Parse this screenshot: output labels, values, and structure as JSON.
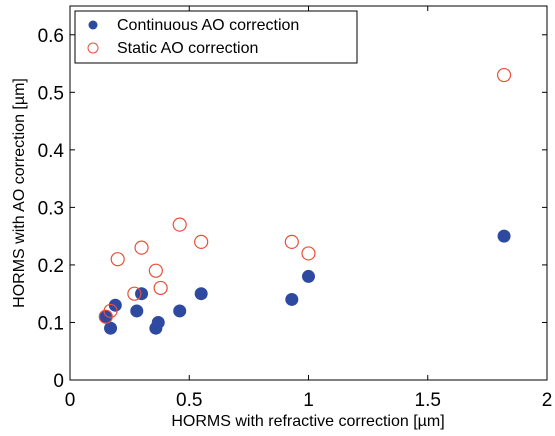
{
  "chart_data": {
    "type": "scatter",
    "title": "",
    "xlabel": "HORMS with refractive correction [µm]",
    "ylabel": "HORMS with AO correction [µm]",
    "xlim": [
      0,
      2
    ],
    "ylim": [
      0,
      0.65
    ],
    "x_ticks": [
      {
        "value": 0,
        "label": "0"
      },
      {
        "value": 0.5,
        "label": "0.5"
      },
      {
        "value": 1,
        "label": "1"
      },
      {
        "value": 1.5,
        "label": "1.5"
      },
      {
        "value": 2,
        "label": "2"
      }
    ],
    "y_ticks": [
      {
        "value": 0,
        "label": "0"
      },
      {
        "value": 0.1,
        "label": "0.1"
      },
      {
        "value": 0.2,
        "label": "0.2"
      },
      {
        "value": 0.3,
        "label": "0.3"
      },
      {
        "value": 0.4,
        "label": "0.4"
      },
      {
        "value": 0.5,
        "label": "0.5"
      },
      {
        "value": 0.6,
        "label": "0.6"
      }
    ],
    "grid": false,
    "legend_position": "top-left",
    "series": [
      {
        "name": "Continuous AO correction",
        "marker": "filled-circle",
        "color": "#2e4aa0",
        "points": [
          {
            "x": 0.15,
            "y": 0.11
          },
          {
            "x": 0.17,
            "y": 0.09
          },
          {
            "x": 0.19,
            "y": 0.13
          },
          {
            "x": 0.28,
            "y": 0.12
          },
          {
            "x": 0.3,
            "y": 0.15
          },
          {
            "x": 0.36,
            "y": 0.09
          },
          {
            "x": 0.37,
            "y": 0.1
          },
          {
            "x": 0.46,
            "y": 0.12
          },
          {
            "x": 0.55,
            "y": 0.15
          },
          {
            "x": 0.93,
            "y": 0.14
          },
          {
            "x": 1.0,
            "y": 0.18
          },
          {
            "x": 1.82,
            "y": 0.25
          }
        ]
      },
      {
        "name": "Static AO correction",
        "marker": "open-circle",
        "color": "#e8503a",
        "points": [
          {
            "x": 0.15,
            "y": 0.11
          },
          {
            "x": 0.17,
            "y": 0.12
          },
          {
            "x": 0.2,
            "y": 0.21
          },
          {
            "x": 0.27,
            "y": 0.15
          },
          {
            "x": 0.3,
            "y": 0.23
          },
          {
            "x": 0.36,
            "y": 0.19
          },
          {
            "x": 0.38,
            "y": 0.16
          },
          {
            "x": 0.46,
            "y": 0.27
          },
          {
            "x": 0.55,
            "y": 0.24
          },
          {
            "x": 0.93,
            "y": 0.24
          },
          {
            "x": 1.0,
            "y": 0.22
          },
          {
            "x": 1.82,
            "y": 0.53
          }
        ]
      }
    ]
  }
}
